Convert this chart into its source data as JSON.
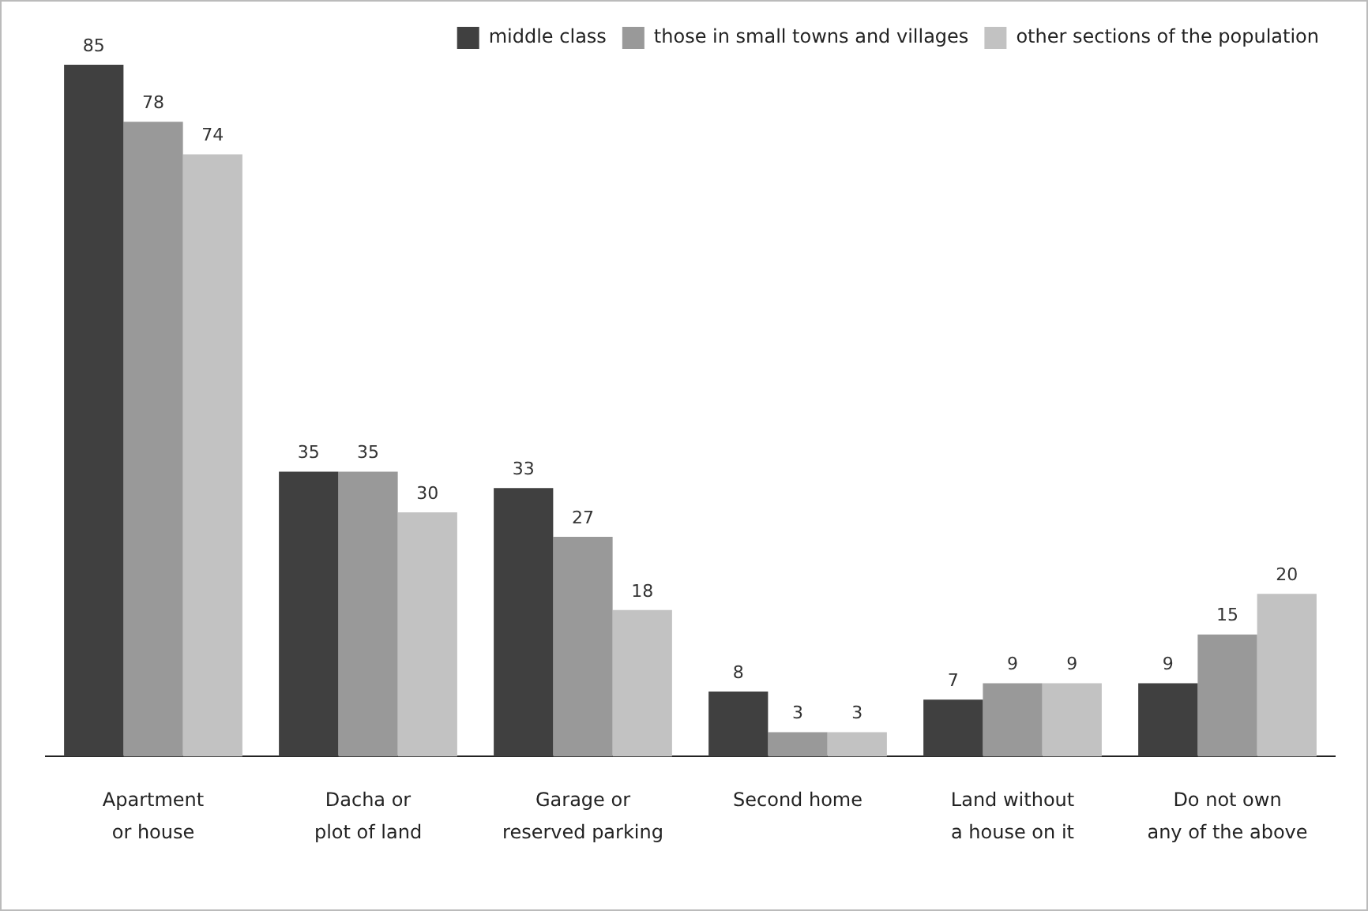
{
  "chart_data": {
    "type": "bar",
    "categories": [
      "Apartment\nor house",
      "Dacha or\nplot of land",
      "Garage or\nreserved parking",
      "Second home",
      "Land without\na house on it",
      "Do not own\nany of the above"
    ],
    "series": [
      {
        "name": "middle class",
        "color": "#404040",
        "values": [
          85,
          35,
          33,
          8,
          7,
          9
        ]
      },
      {
        "name": "those in small towns and villages",
        "color": "#999999",
        "values": [
          78,
          35,
          27,
          3,
          9,
          15
        ]
      },
      {
        "name": "other sections of the population",
        "color": "#c2c2c2",
        "values": [
          74,
          30,
          18,
          3,
          9,
          20
        ]
      }
    ],
    "ylim": [
      0,
      85
    ],
    "data_labels": true,
    "legend": "top right",
    "grid": false,
    "tick_labels": "x"
  }
}
